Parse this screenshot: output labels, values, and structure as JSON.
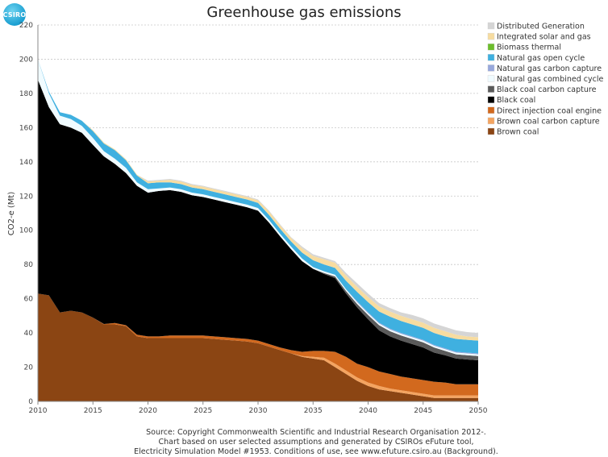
{
  "logo": {
    "text": "CSIRO"
  },
  "source_lines": [
    "Source: Copyright Commonwealth Scientific and Industrial Research Organisation 2012-.",
    "Chart based on user selected assumptions and generated by CSIROs eFuture tool,",
    "Electricity Simulation Model #1953. Conditions of use, see www.efuture.csiro.au (Background)."
  ],
  "colors": {
    "Brown coal": "#8b4513",
    "Brown coal carbon capture": "#f4a460",
    "Direct injection coal engine": "#d2691e",
    "Black coal": "#000000",
    "Black coal carbon capture": "#5a5a5a",
    "Natural gas combined cycle": "#f0fbff",
    "Natural gas carbon capture": "#98a8dc",
    "Natural gas open cycle": "#3fb0e0",
    "Biomass thermal": "#6cbd2c",
    "Integrated solar and gas": "#f7dca0",
    "Distributed Generation": "#d5d5d5"
  },
  "chart_data": {
    "type": "area",
    "stacked": true,
    "title": "Greenhouse gas emissions",
    "xlabel": "",
    "ylabel": "CO2-e (Mt)",
    "xlim": [
      2010,
      2050
    ],
    "ylim": [
      0,
      220
    ],
    "xticks": [
      2010,
      2015,
      2020,
      2025,
      2030,
      2035,
      2040,
      2045,
      2050
    ],
    "yticks": [
      0,
      20,
      40,
      60,
      80,
      100,
      120,
      140,
      160,
      180,
      200,
      220
    ],
    "grid": true,
    "legend_position": "top-right",
    "legend_order": [
      "Distributed Generation",
      "Integrated solar and gas",
      "Biomass thermal",
      "Natural gas open cycle",
      "Natural gas carbon capture",
      "Natural gas combined cycle",
      "Black coal carbon capture",
      "Black coal",
      "Direct injection coal engine",
      "Brown coal carbon capture",
      "Brown coal"
    ],
    "x": [
      2010,
      2011,
      2012,
      2013,
      2014,
      2015,
      2016,
      2017,
      2018,
      2019,
      2020,
      2021,
      2022,
      2023,
      2024,
      2025,
      2026,
      2027,
      2028,
      2029,
      2030,
      2031,
      2032,
      2033,
      2034,
      2035,
      2036,
      2037,
      2038,
      2039,
      2040,
      2041,
      2042,
      2043,
      2044,
      2045,
      2046,
      2047,
      2048,
      2049,
      2050
    ],
    "series": [
      {
        "name": "Brown coal",
        "values": [
          63,
          62,
          52,
          53,
          52,
          49,
          45,
          45,
          44,
          38,
          37,
          37,
          37,
          37,
          37,
          37,
          36.5,
          36,
          35.5,
          35,
          34,
          32,
          30,
          28,
          26,
          25,
          24,
          20,
          16,
          12,
          9,
          7,
          6,
          5,
          4,
          3,
          2,
          2,
          2,
          2,
          2
        ]
      },
      {
        "name": "Brown coal carbon capture",
        "values": [
          0,
          0,
          0,
          0,
          0,
          0,
          0,
          0,
          0,
          0,
          0,
          0,
          0,
          0,
          0,
          0,
          0,
          0,
          0,
          0,
          0,
          0,
          0,
          0,
          0.5,
          1,
          1.5,
          2,
          2,
          2,
          2,
          2,
          1.5,
          1.5,
          1.5,
          1.5,
          1.5,
          1.5,
          1.5,
          1.5,
          1.5
        ]
      },
      {
        "name": "Direct injection coal engine",
        "values": [
          0,
          0,
          0,
          0,
          0,
          0,
          0.2,
          0.8,
          0.5,
          1,
          1,
          1,
          1.5,
          1.5,
          1.5,
          1.5,
          1.5,
          1.5,
          1.5,
          1.5,
          1.5,
          1.5,
          1.5,
          2,
          2.5,
          3.5,
          4,
          7,
          8,
          8,
          9,
          8.5,
          8.5,
          8,
          8,
          8,
          8,
          7.5,
          6.5,
          6.5,
          6.5
        ]
      },
      {
        "name": "Black coal",
        "values": [
          125,
          110,
          110,
          107,
          105,
          101,
          98,
          93,
          89,
          87,
          84,
          85,
          85,
          84,
          82,
          81,
          80,
          79,
          78,
          77,
          76,
          71,
          65,
          59,
          53,
          48,
          45,
          43,
          37,
          33,
          28,
          24,
          22,
          21,
          20,
          19,
          17,
          16,
          15,
          14.5,
          14
        ]
      },
      {
        "name": "Black coal carbon capture",
        "values": [
          0,
          0,
          0,
          0,
          0,
          0,
          0,
          0,
          0,
          0,
          0,
          0,
          0,
          0,
          0,
          0,
          0,
          0,
          0,
          0,
          0,
          0,
          0,
          0,
          0,
          0,
          0.5,
          1,
          1.5,
          2,
          2.5,
          3,
          3,
          3,
          3,
          3,
          3,
          2.5,
          2.5,
          2.5,
          2.5
        ]
      },
      {
        "name": "Natural gas combined cycle",
        "values": [
          12,
          8,
          5,
          5,
          4,
          4,
          3,
          3,
          3,
          2,
          2,
          1.5,
          1.5,
          1.5,
          1.5,
          1.5,
          1.5,
          1.5,
          1.5,
          1.5,
          1.5,
          1.5,
          1.5,
          1.5,
          1.5,
          1,
          1,
          1,
          1,
          1,
          1,
          1,
          1,
          1,
          1,
          1,
          1,
          1,
          1,
          1,
          1
        ]
      },
      {
        "name": "Natural gas carbon capture",
        "values": [
          0,
          0,
          0,
          0,
          0,
          0,
          0,
          0,
          0,
          0,
          0,
          0,
          0,
          0,
          0,
          0,
          0,
          0,
          0,
          0,
          0,
          0,
          0,
          0,
          0,
          0,
          0,
          0,
          0,
          0.5,
          0.5,
          0.5,
          0.5,
          0.5,
          0.5,
          0.5,
          0.5,
          0.5,
          0.5,
          0.5,
          0.5
        ]
      },
      {
        "name": "Natural gas open cycle",
        "values": [
          0,
          1,
          2,
          2.5,
          3,
          4,
          4.5,
          5,
          4.5,
          4,
          3.5,
          3.5,
          3,
          3,
          3,
          3,
          3,
          3,
          3,
          3,
          3,
          3,
          3,
          3,
          3.5,
          4,
          4,
          4,
          5,
          5.5,
          6,
          6.5,
          7,
          7,
          7,
          7,
          7,
          7,
          7.5,
          7.5,
          7.5
        ]
      },
      {
        "name": "Biomass thermal",
        "values": [
          0,
          0,
          0,
          0,
          0,
          0,
          0,
          0,
          0,
          0,
          0,
          0,
          0,
          0,
          0,
          0,
          0,
          0,
          0,
          0,
          0,
          0,
          0,
          0,
          0,
          0,
          0,
          0,
          0,
          0,
          0,
          0,
          0,
          0,
          0,
          0,
          0,
          0,
          0,
          0,
          0
        ]
      },
      {
        "name": "Integrated solar and gas",
        "values": [
          0,
          0,
          0,
          0,
          0,
          0.5,
          0.5,
          0.5,
          0.5,
          0.5,
          1,
          1,
          1.5,
          1.5,
          1.5,
          1.5,
          1.5,
          1.5,
          1.5,
          1.5,
          1.5,
          2,
          2,
          2,
          2.5,
          2.5,
          3,
          3,
          3,
          3,
          3,
          3,
          3,
          3,
          3,
          3,
          3,
          3,
          2.5,
          2,
          2
        ]
      },
      {
        "name": "Distributed Generation",
        "values": [
          0,
          0,
          0,
          0,
          0,
          0,
          0,
          0,
          0,
          0,
          0.5,
          0.5,
          0.5,
          0.5,
          0.5,
          0.5,
          0.5,
          0.5,
          0.5,
          0.5,
          0.5,
          0.5,
          0.5,
          0.5,
          1,
          1,
          1,
          1,
          1.5,
          2,
          2,
          2,
          2,
          2,
          2.5,
          2.5,
          2.5,
          2.5,
          2.5,
          2.5,
          2.5
        ]
      }
    ]
  }
}
